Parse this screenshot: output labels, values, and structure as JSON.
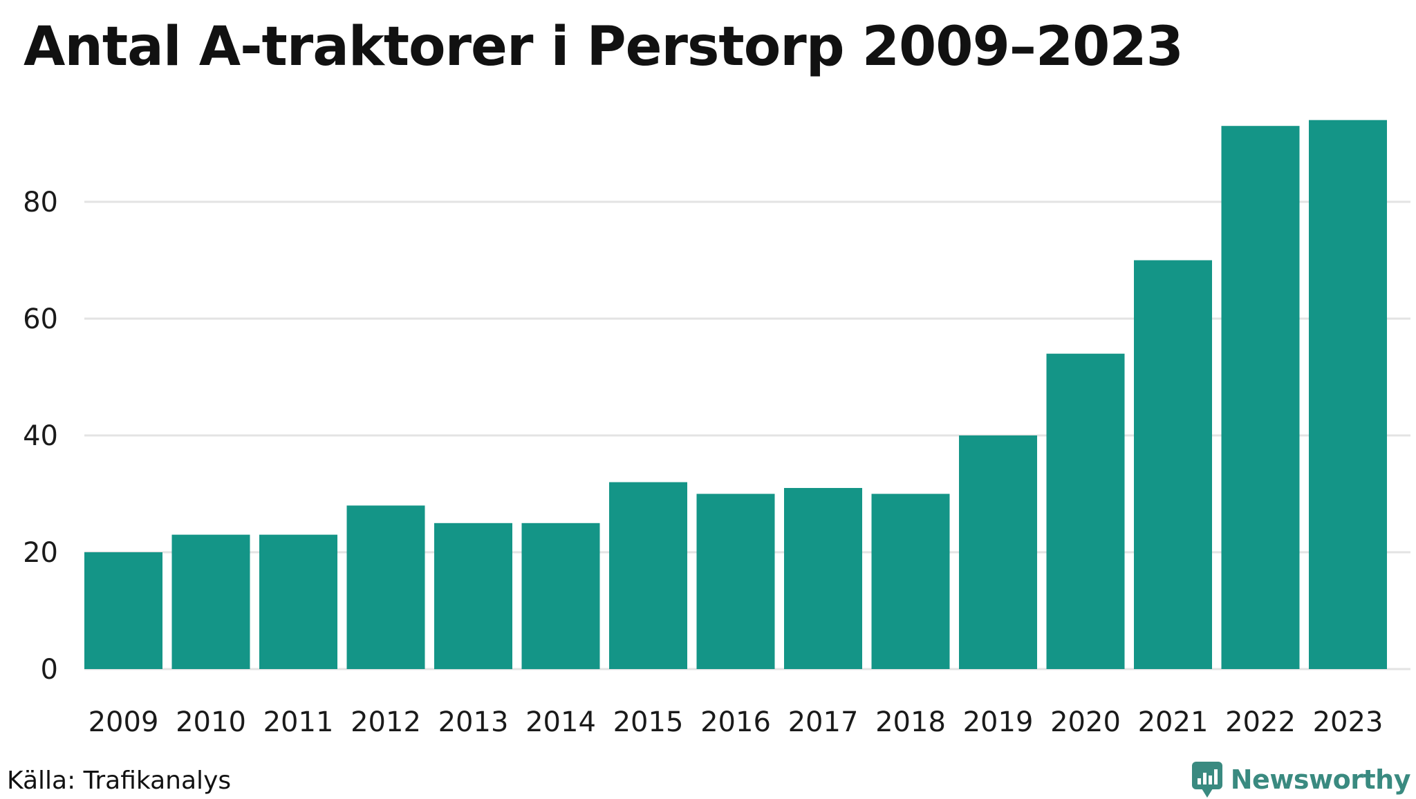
{
  "chart_data": {
    "type": "bar",
    "title": "Antal A-traktorer i Perstorp 2009–2023",
    "xlabel": "",
    "ylabel": "",
    "categories": [
      "2009",
      "2010",
      "2011",
      "2012",
      "2013",
      "2014",
      "2015",
      "2016",
      "2017",
      "2018",
      "2019",
      "2020",
      "2021",
      "2022",
      "2023"
    ],
    "values": [
      20,
      23,
      23,
      28,
      25,
      25,
      32,
      30,
      31,
      30,
      40,
      54,
      70,
      93,
      94
    ],
    "ylim": [
      0,
      100
    ],
    "yticks": [
      0,
      20,
      40,
      60,
      80
    ],
    "grid": true,
    "bar_color": "#149587",
    "legend": null
  },
  "footer": {
    "source": "Källa: Trafikanalys",
    "brand": "Newsworthy",
    "brand_icon": "newsworthy-logo-icon",
    "brand_color": "#3a8a80"
  }
}
